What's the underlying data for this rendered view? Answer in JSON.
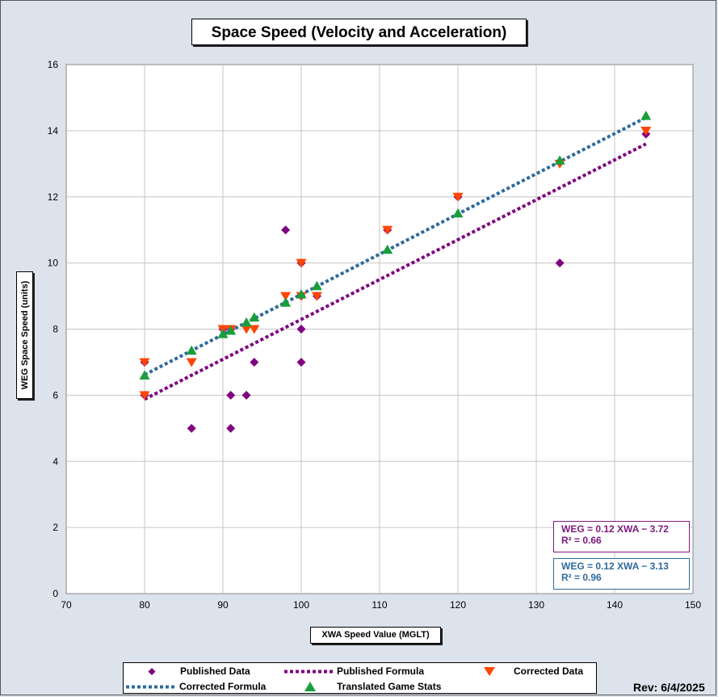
{
  "chart_data": {
    "type": "scatter",
    "title": "Space Speed (Velocity and Acceleration)",
    "xlabel": "XWA Speed Value (MGLT)",
    "ylabel": "WEG Space Speed (units)",
    "xlim": [
      70,
      150
    ],
    "ylim": [
      0,
      16
    ],
    "x_ticks": [
      70,
      80,
      90,
      100,
      110,
      120,
      130,
      140,
      150
    ],
    "y_ticks": [
      0,
      2,
      4,
      6,
      8,
      10,
      12,
      14,
      16
    ],
    "grid": true,
    "legend_position": "bottom",
    "series": [
      {
        "name": "Published Data",
        "marker": "diamond",
        "color": "#800080",
        "points": [
          [
            80,
            7
          ],
          [
            80,
            6
          ],
          [
            86,
            5
          ],
          [
            90,
            8
          ],
          [
            91,
            8
          ],
          [
            91,
            6
          ],
          [
            91,
            5
          ],
          [
            93,
            6
          ],
          [
            94,
            7
          ],
          [
            98,
            11
          ],
          [
            100,
            10
          ],
          [
            100,
            9
          ],
          [
            100,
            8
          ],
          [
            100,
            7
          ],
          [
            102,
            9
          ],
          [
            111,
            11
          ],
          [
            120,
            12
          ],
          [
            133,
            10
          ],
          [
            144,
            13.9
          ]
        ]
      },
      {
        "name": "Corrected Data",
        "marker": "triangle-down",
        "color": "#ff4500",
        "points": [
          [
            80,
            7
          ],
          [
            80,
            6
          ],
          [
            86,
            7
          ],
          [
            90,
            8
          ],
          [
            91,
            8
          ],
          [
            93,
            8
          ],
          [
            94,
            8
          ],
          [
            98,
            9
          ],
          [
            100,
            10
          ],
          [
            100,
            9
          ],
          [
            102,
            9
          ],
          [
            111,
            11
          ],
          [
            120,
            12
          ],
          [
            133,
            13
          ],
          [
            144,
            14
          ]
        ]
      },
      {
        "name": "Translated Game Stats",
        "marker": "triangle-up",
        "color": "#1a9e3c",
        "points": [
          [
            80,
            6.6
          ],
          [
            86,
            7.35
          ],
          [
            90,
            7.85
          ],
          [
            91,
            7.95
          ],
          [
            93,
            8.2
          ],
          [
            94,
            8.35
          ],
          [
            98,
            8.8
          ],
          [
            100,
            9.05
          ],
          [
            102,
            9.3
          ],
          [
            111,
            10.4
          ],
          [
            120,
            11.5
          ],
          [
            133,
            13.1
          ],
          [
            144,
            14.45
          ]
        ]
      },
      {
        "name": "Published Formula",
        "type": "line",
        "style": "dotted",
        "color": "#800080",
        "x": [
          80,
          144
        ],
        "y": [
          5.88,
          13.6
        ]
      },
      {
        "name": "Corrected Formula",
        "type": "line",
        "style": "dotted",
        "color": "#2e6a9c",
        "x": [
          80,
          144
        ],
        "y": [
          6.62,
          14.4
        ]
      }
    ],
    "annotations": [
      {
        "line1": "WEG = 0.12 XWA − 3.72",
        "line2": "R² = 0.66",
        "color": "#800080"
      },
      {
        "line1": "WEG = 0.12 XWA − 3.13",
        "line2": "R² = 0.96",
        "color": "#2e6a9c"
      }
    ]
  },
  "revision": "Rev: 6/4/2025"
}
